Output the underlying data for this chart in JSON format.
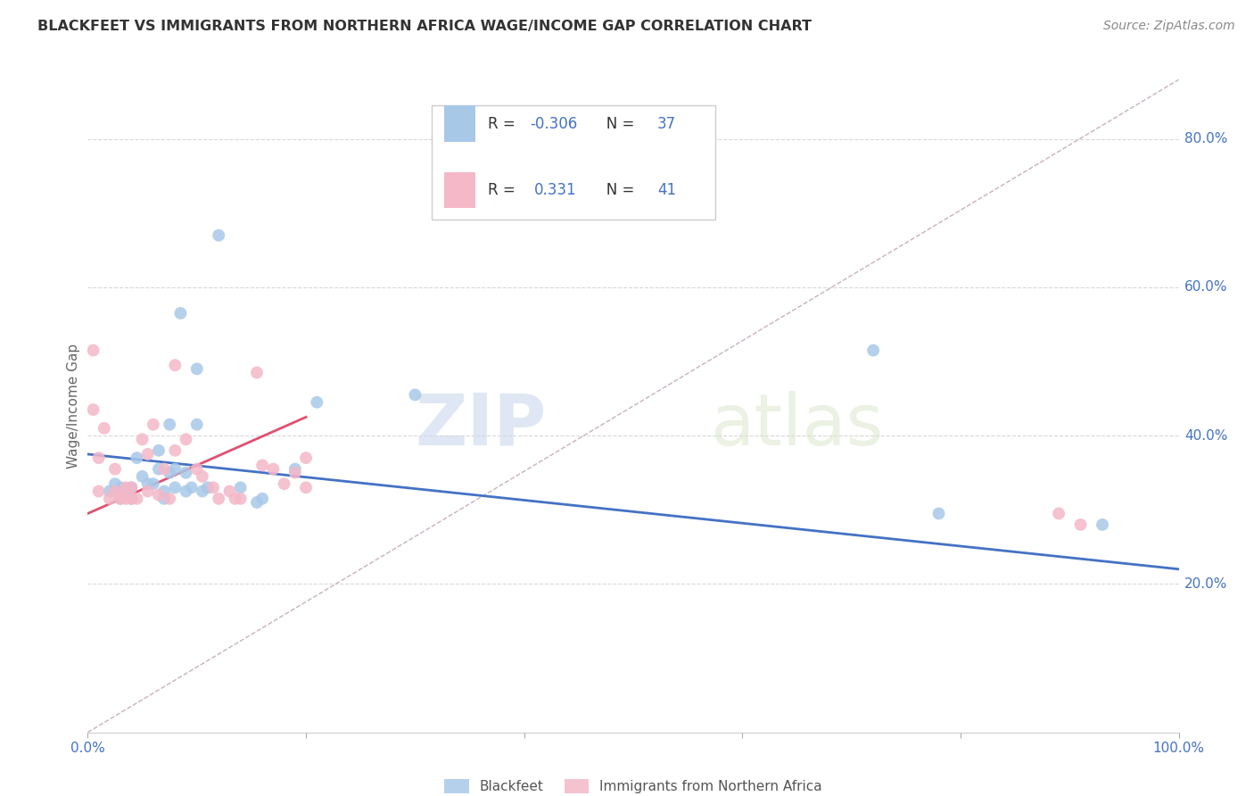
{
  "title": "BLACKFEET VS IMMIGRANTS FROM NORTHERN AFRICA WAGE/INCOME GAP CORRELATION CHART",
  "source": "Source: ZipAtlas.com",
  "ylabel": "Wage/Income Gap",
  "xlim": [
    0.0,
    1.0
  ],
  "ylim": [
    0.0,
    0.88
  ],
  "yticks_right": [
    0.2,
    0.4,
    0.6,
    0.8
  ],
  "ytick_right_labels": [
    "20.0%",
    "40.0%",
    "60.0%",
    "80.0%"
  ],
  "blue_color": "#a8c8e8",
  "pink_color": "#f4b8c8",
  "blue_line_color": "#4472c4",
  "pink_line_color": "#e05070",
  "dashed_line_color": "#c8b0c0",
  "watermark_zip": "ZIP",
  "watermark_atlas": "atlas",
  "legend_R_blue": "-0.306",
  "legend_N_blue": "37",
  "legend_R_pink": "0.331",
  "legend_N_pink": "41",
  "blue_scatter_x": [
    0.02,
    0.025,
    0.03,
    0.03,
    0.035,
    0.04,
    0.04,
    0.045,
    0.05,
    0.055,
    0.06,
    0.065,
    0.065,
    0.07,
    0.07,
    0.075,
    0.075,
    0.08,
    0.08,
    0.085,
    0.09,
    0.09,
    0.095,
    0.1,
    0.1,
    0.105,
    0.11,
    0.12,
    0.14,
    0.155,
    0.16,
    0.19,
    0.21,
    0.3,
    0.72,
    0.78,
    0.93
  ],
  "blue_scatter_y": [
    0.325,
    0.335,
    0.315,
    0.33,
    0.32,
    0.315,
    0.33,
    0.37,
    0.345,
    0.335,
    0.335,
    0.355,
    0.38,
    0.315,
    0.325,
    0.35,
    0.415,
    0.33,
    0.355,
    0.565,
    0.325,
    0.35,
    0.33,
    0.415,
    0.49,
    0.325,
    0.33,
    0.67,
    0.33,
    0.31,
    0.315,
    0.355,
    0.445,
    0.455,
    0.515,
    0.295,
    0.28
  ],
  "pink_scatter_x": [
    0.005,
    0.005,
    0.01,
    0.01,
    0.015,
    0.02,
    0.025,
    0.025,
    0.03,
    0.03,
    0.035,
    0.035,
    0.04,
    0.04,
    0.045,
    0.05,
    0.055,
    0.055,
    0.06,
    0.065,
    0.07,
    0.075,
    0.08,
    0.08,
    0.09,
    0.1,
    0.105,
    0.115,
    0.12,
    0.13,
    0.135,
    0.14,
    0.155,
    0.16,
    0.17,
    0.18,
    0.19,
    0.2,
    0.2,
    0.89,
    0.91
  ],
  "pink_scatter_y": [
    0.515,
    0.435,
    0.325,
    0.37,
    0.41,
    0.315,
    0.325,
    0.355,
    0.32,
    0.315,
    0.315,
    0.33,
    0.315,
    0.33,
    0.315,
    0.395,
    0.325,
    0.375,
    0.415,
    0.32,
    0.355,
    0.315,
    0.495,
    0.38,
    0.395,
    0.355,
    0.345,
    0.33,
    0.315,
    0.325,
    0.315,
    0.315,
    0.485,
    0.36,
    0.355,
    0.335,
    0.35,
    0.33,
    0.37,
    0.295,
    0.28
  ],
  "blue_trend_x": [
    0.0,
    1.0
  ],
  "blue_trend_y": [
    0.375,
    0.22
  ],
  "pink_trend_x": [
    0.0,
    0.2
  ],
  "pink_trend_y": [
    0.295,
    0.425
  ],
  "diag_line_x": [
    0.0,
    1.0
  ],
  "diag_line_y": [
    0.0,
    0.88
  ]
}
